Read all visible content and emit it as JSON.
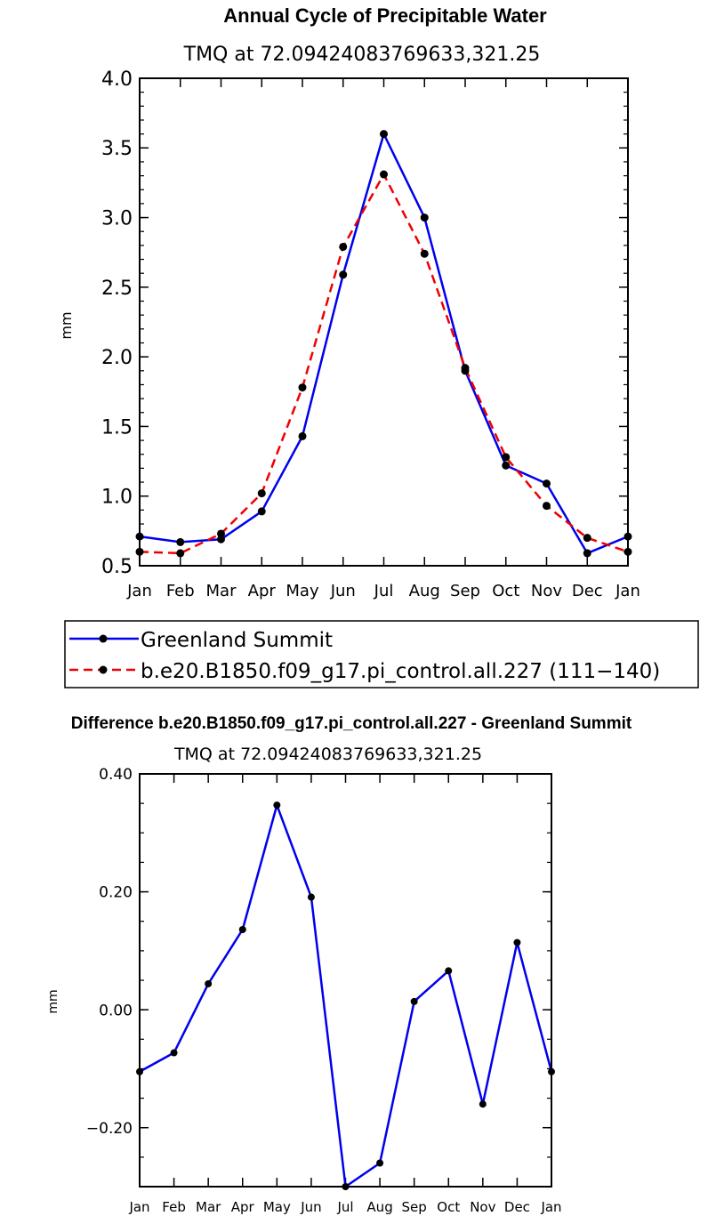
{
  "chart_data": [
    {
      "type": "line",
      "title": "Annual Cycle of Precipitable Water",
      "subtitle": "TMQ at 72.09424083769633,321.25",
      "xlabel": "",
      "ylabel": "mm",
      "categories": [
        "Jan",
        "Feb",
        "Mar",
        "Apr",
        "May",
        "Jun",
        "Jul",
        "Aug",
        "Sep",
        "Oct",
        "Nov",
        "Dec",
        "Jan"
      ],
      "ylim": [
        0.5,
        4.0
      ],
      "yticks": [
        0.5,
        1.0,
        1.5,
        2.0,
        2.5,
        3.0,
        3.5,
        4.0
      ],
      "ytick_labels": [
        "0.5",
        "1.0",
        "1.5",
        "2.0",
        "2.5",
        "3.0",
        "3.5",
        "4.0"
      ],
      "legend_position": "bottom",
      "series": [
        {
          "name": "Greenland Summit",
          "color": "#0000ee",
          "style": "solid",
          "values": [
            0.71,
            0.67,
            0.69,
            0.89,
            1.43,
            2.59,
            3.6,
            3.0,
            1.9,
            1.22,
            1.09,
            0.59,
            0.71
          ]
        },
        {
          "name": "b.e20.B1850.f09_g17.pi_control.all.227 (111−140)",
          "color": "#ee0000",
          "style": "dashed",
          "values": [
            0.6,
            0.59,
            0.73,
            1.02,
            1.78,
            2.79,
            3.31,
            2.74,
            1.92,
            1.28,
            0.93,
            0.7,
            0.6
          ]
        }
      ]
    },
    {
      "type": "line",
      "title": "Difference b.e20.B1850.f09_g17.pi_control.all.227 - Greenland Summit",
      "subtitle": "TMQ at 72.09424083769633,321.25",
      "xlabel": "",
      "ylabel": "mm",
      "categories": [
        "Jan",
        "Feb",
        "Mar",
        "Apr",
        "May",
        "Jun",
        "Jul",
        "Aug",
        "Sep",
        "Oct",
        "Nov",
        "Dec",
        "Jan"
      ],
      "ylim": [
        -0.3,
        0.4
      ],
      "yticks": [
        -0.2,
        0.0,
        0.2,
        0.4
      ],
      "ytick_labels": [
        "−0.20",
        "0.00",
        "0.20",
        "0.40"
      ],
      "series": [
        {
          "name": "difference",
          "color": "#0000ee",
          "style": "solid",
          "values": [
            -0.105,
            -0.073,
            0.044,
            0.136,
            0.347,
            0.191,
            -0.3,
            -0.26,
            0.014,
            0.066,
            -0.16,
            0.114,
            -0.105
          ]
        }
      ]
    }
  ]
}
